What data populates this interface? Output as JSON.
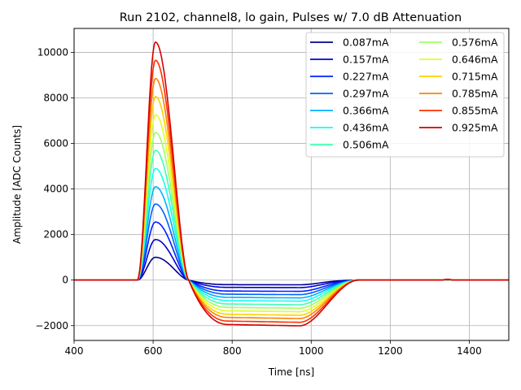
{
  "chart_data": {
    "type": "line",
    "title": "Run 2102, channel8, lo gain, Pulses w/ 7.0 dB Attenuation",
    "xlabel": "Time [ns]",
    "ylabel": "Amplitude [ADC Counts]",
    "xlim": [
      400,
      1500
    ],
    "ylim": [
      -2650,
      11050
    ],
    "xticks": [
      400,
      600,
      800,
      1000,
      1200,
      1400
    ],
    "yticks": [
      -2000,
      0,
      2000,
      4000,
      6000,
      8000,
      10000
    ],
    "ytick_labels": [
      "−2000",
      "0",
      "2000",
      "4000",
      "6000",
      "8000",
      "10000"
    ],
    "grid": true,
    "legend_position": "top-right",
    "pulse_shape": {
      "baseline_end": 560,
      "peak_time": 606,
      "zero_crossing": 690,
      "undershoot_flat_start": 790,
      "undershoot_flat_end": 970,
      "recovery_end": 1120,
      "small_bump_time": 1345
    },
    "series": [
      {
        "name": "0.087mA",
        "color": "#00008f",
        "peak": 1000,
        "undershoot": -200
      },
      {
        "name": "0.157mA",
        "color": "#0000d6",
        "peak": 1780,
        "undershoot": -320
      },
      {
        "name": "0.227mA",
        "color": "#0020ff",
        "peak": 2550,
        "undershoot": -480
      },
      {
        "name": "0.297mA",
        "color": "#0060ff",
        "peak": 3340,
        "undershoot": -620
      },
      {
        "name": "0.366mA",
        "color": "#00b0ff",
        "peak": 4100,
        "undershoot": -760
      },
      {
        "name": "0.436mA",
        "color": "#10ffef",
        "peak": 4900,
        "undershoot": -900
      },
      {
        "name": "0.506mA",
        "color": "#40ffb0",
        "peak": 5700,
        "undershoot": -1050
      },
      {
        "name": "0.576mA",
        "color": "#a0ff60",
        "peak": 6480,
        "undershoot": -1200
      },
      {
        "name": "0.646mA",
        "color": "#dfff20",
        "peak": 7260,
        "undershoot": -1350
      },
      {
        "name": "0.715mA",
        "color": "#ffd000",
        "peak": 8060,
        "undershoot": -1500
      },
      {
        "name": "0.785mA",
        "color": "#ff8000",
        "peak": 8850,
        "undershoot": -1640
      },
      {
        "name": "0.855mA",
        "color": "#ff3000",
        "peak": 9650,
        "undershoot": -1800
      },
      {
        "name": "0.925mA",
        "color": "#d40000",
        "peak": 10450,
        "undershoot": -1950
      }
    ]
  }
}
